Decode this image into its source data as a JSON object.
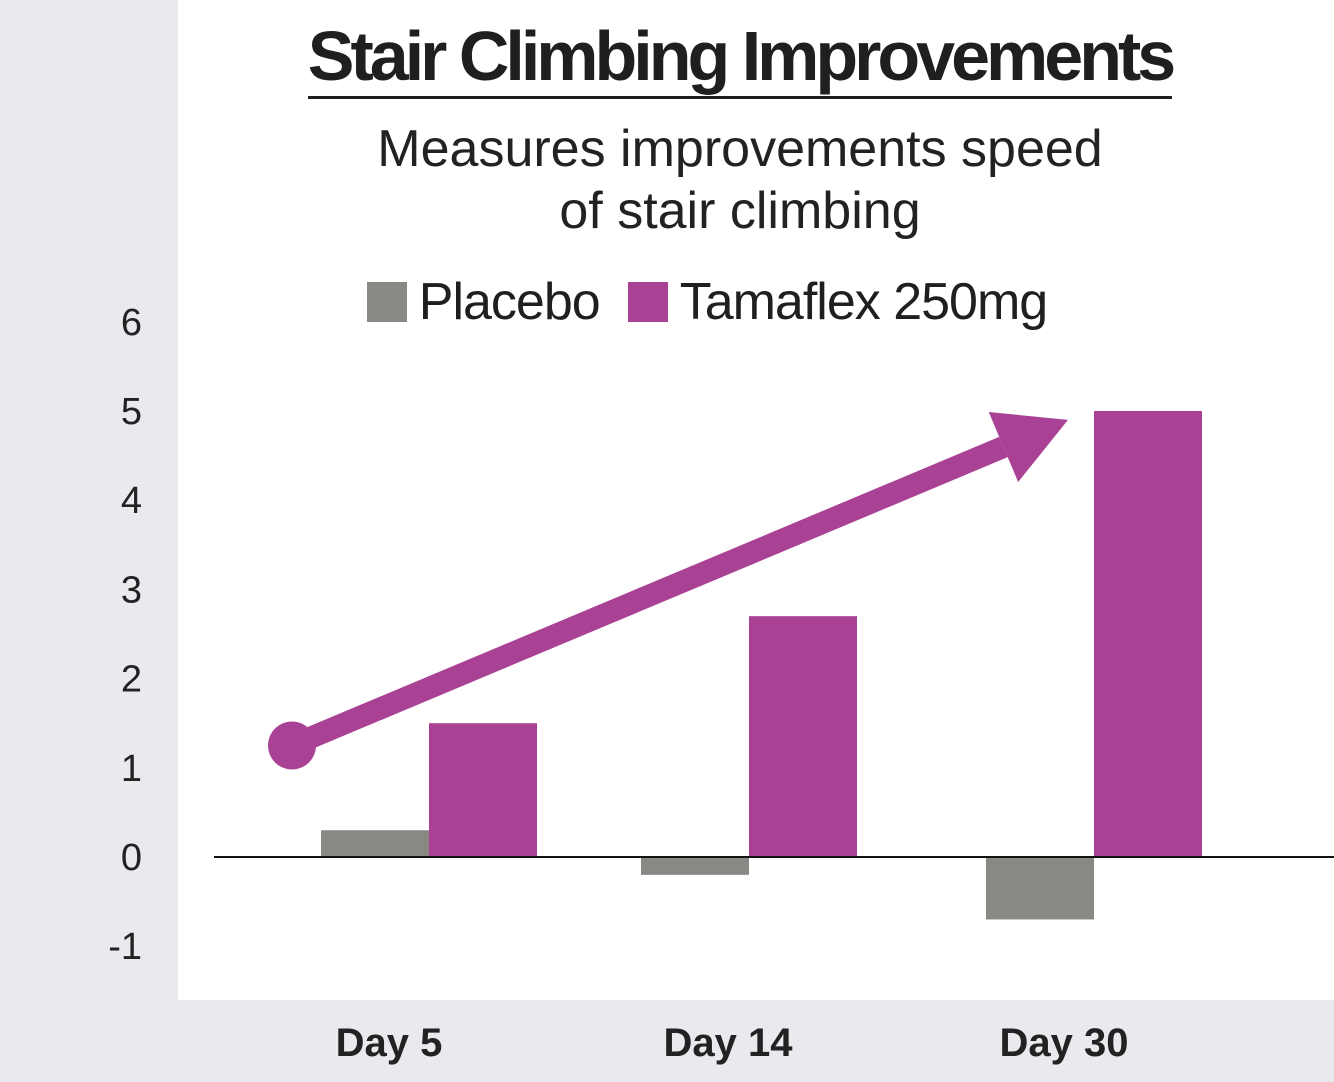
{
  "chart_data": {
    "type": "bar",
    "title": "Stair Climbing Improvements",
    "subtitle_lines": [
      "Measures improvements speed",
      "of stair climbing"
    ],
    "categories": [
      "Day 5",
      "Day 14",
      "Day 30"
    ],
    "series": [
      {
        "name": "Placebo",
        "values": [
          0.3,
          -0.2,
          -0.7
        ],
        "color": "#8a8885"
      },
      {
        "name": "Tamaflex 250mg",
        "values": [
          1.5,
          2.7,
          5.0
        ],
        "color": "#a94294"
      }
    ],
    "yticks": [
      6,
      5,
      4,
      3,
      2,
      1,
      0,
      -1
    ],
    "ylim": [
      -1.3,
      6.4
    ],
    "grid": false,
    "legend_position": "top-center",
    "annotation": {
      "type": "trend-arrow",
      "color": "#a94294",
      "from_y": 1.25,
      "to_y": 4.9
    }
  }
}
